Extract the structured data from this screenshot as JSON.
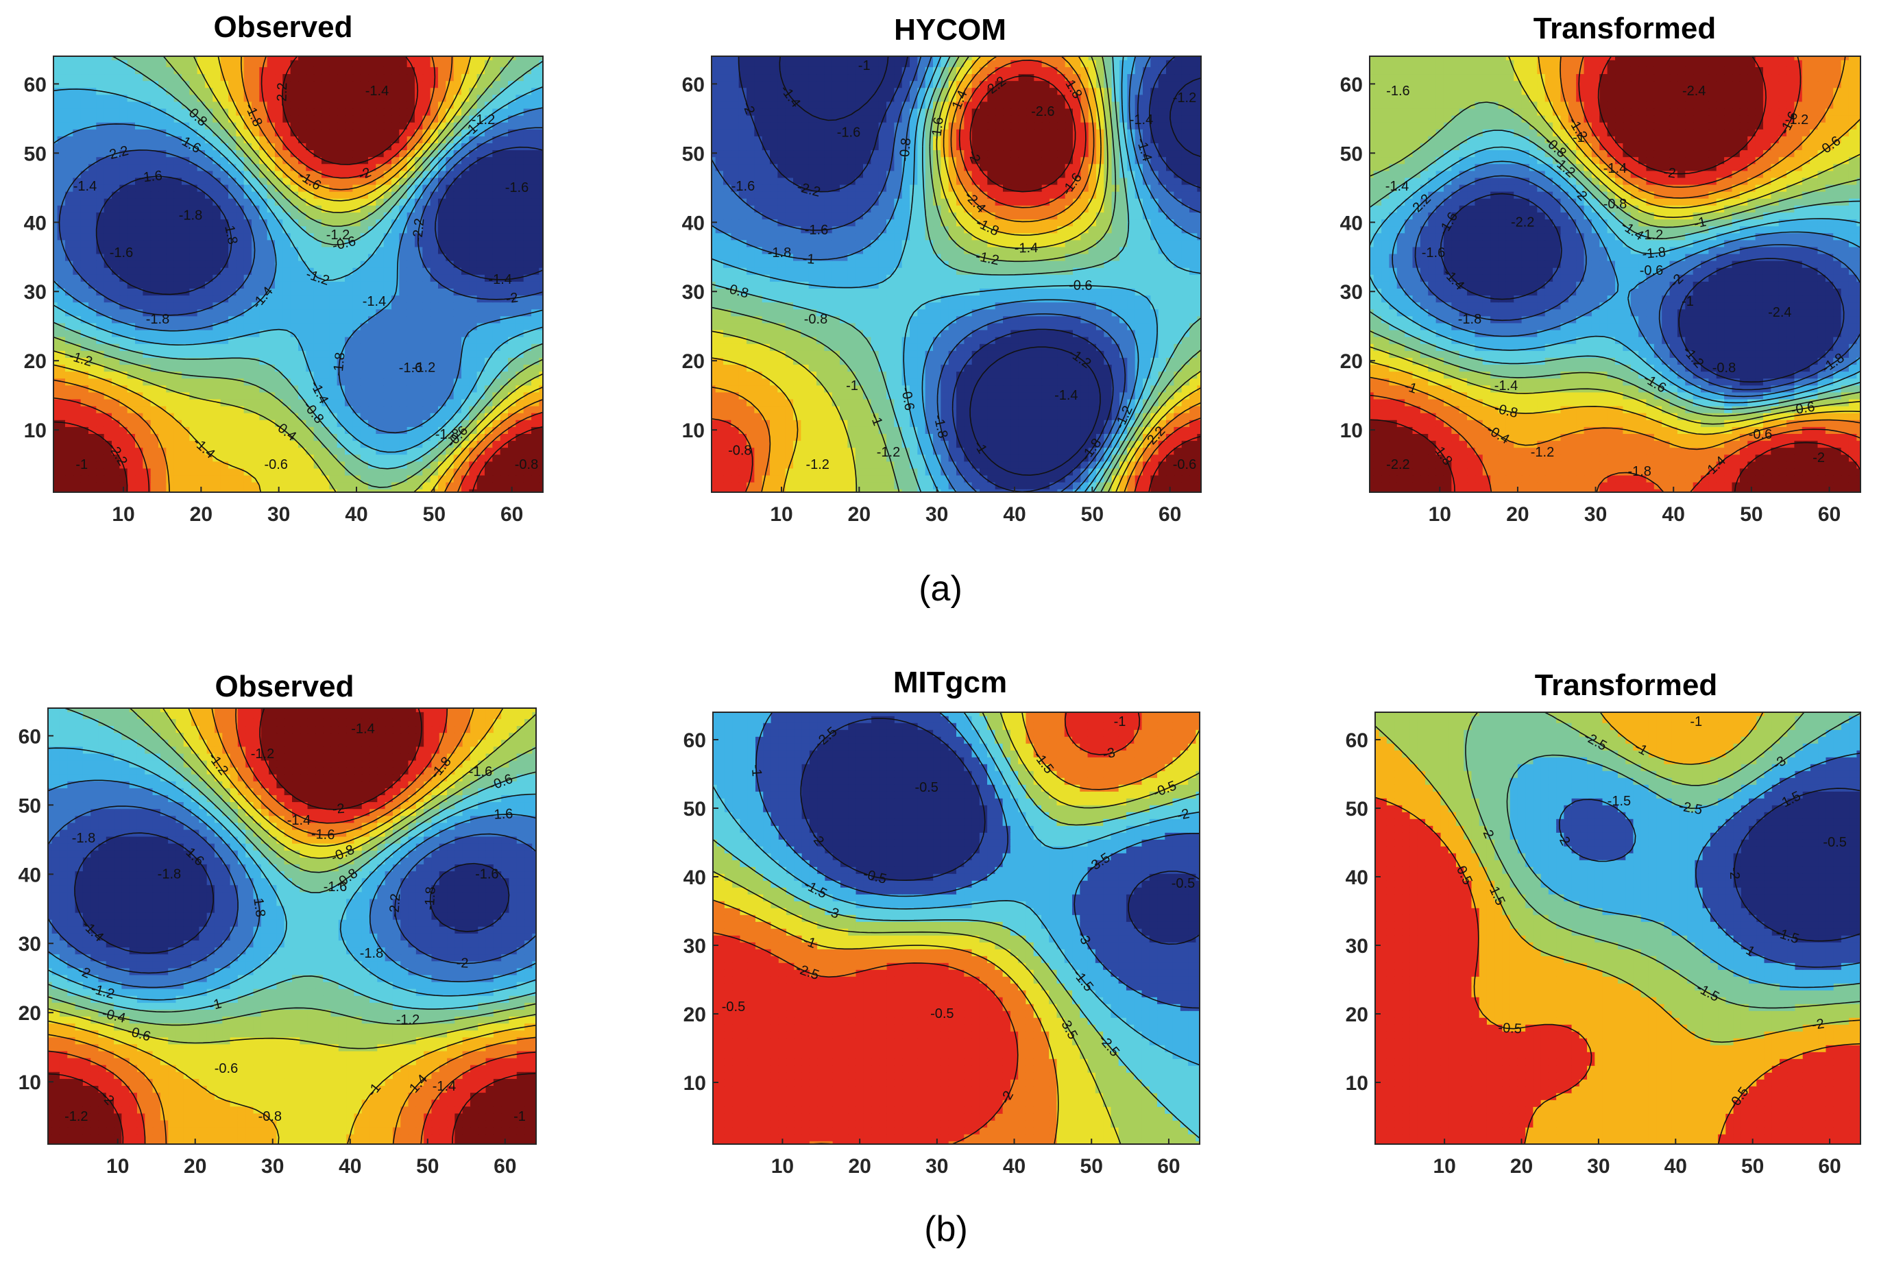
{
  "figure": {
    "captions": [
      "(a)",
      "(b)"
    ]
  },
  "colors": {
    "scale": [
      "#1f2a78",
      "#2d4aa6",
      "#3a78c8",
      "#3fb2e6",
      "#5ccfe0",
      "#7ec89a",
      "#a9cf5a",
      "#e9e02a",
      "#f7b318",
      "#f07a1e",
      "#e3281e",
      "#7a1010"
    ]
  },
  "chart_data": [
    {
      "type": "contour",
      "title": "Observed",
      "row": "(a)",
      "xticks": [
        "10",
        "20",
        "30",
        "40",
        "50",
        "60"
      ],
      "yticks": [
        "10",
        "20",
        "30",
        "40",
        "50",
        "60"
      ],
      "xlim": [
        1,
        64
      ],
      "ylim": [
        1,
        64
      ],
      "levels": [
        -2.4,
        -2.2,
        -2.0,
        -1.8,
        -1.6,
        -1.4,
        -1.2,
        -1.0,
        -0.8,
        -0.6,
        -0.4
      ],
      "features": [
        {
          "kind": "min",
          "x": 16,
          "y": 38,
          "value": -2.3
        },
        {
          "kind": "min",
          "x": 58,
          "y": 42,
          "value": -2.4
        },
        {
          "kind": "max",
          "x": 40,
          "y": 56,
          "value": -0.4
        },
        {
          "kind": "min",
          "x": 46,
          "y": 16,
          "value": -2.0
        },
        {
          "kind": "max",
          "x": 2,
          "y": 2,
          "value": -0.5
        },
        {
          "kind": "max",
          "x": 63,
          "y": 2,
          "value": -0.4
        },
        {
          "kind": "max",
          "x": 27,
          "y": 2,
          "value": -1.1
        }
      ],
      "contour_labels": [
        "-1.4",
        "-1.8",
        "-1.6",
        "-2",
        "-2.2",
        "-2.2",
        "-1.8",
        "-1.4",
        "-1.6",
        "-1.4",
        "-1.2",
        "-1",
        "-0.8",
        "-0.6",
        "-0.8",
        "-0.6",
        "-0.4",
        "-1.2",
        "-1.4",
        "-1.6",
        "-1.8",
        "-2",
        "-2.2",
        "-2.2",
        "-1.8",
        "-1.6",
        "-1.4",
        "-1.2",
        "-1",
        "-0.8",
        "-0.6",
        "-1.2",
        "-1.4",
        "-1.6",
        "-1.8",
        "-1.2",
        "-1.4",
        "-1.6",
        "-1.8"
      ]
    },
    {
      "type": "contour",
      "title": "HYCOM",
      "row": "(a)",
      "xticks": [
        "10",
        "20",
        "30",
        "40",
        "50",
        "60"
      ],
      "yticks": [
        "10",
        "20",
        "30",
        "40",
        "50",
        "60"
      ],
      "xlim": [
        1,
        64
      ],
      "ylim": [
        1,
        64
      ],
      "levels": [
        -2.6,
        -2.4,
        -2.2,
        -2.0,
        -1.8,
        -1.6,
        -1.4,
        -1.2,
        -1.0,
        -0.8,
        -0.6,
        -0.4
      ],
      "features": [
        {
          "kind": "max",
          "x": 41,
          "y": 53,
          "value": -0.4
        },
        {
          "kind": "min",
          "x": 16,
          "y": 50,
          "value": -2.2
        },
        {
          "kind": "min",
          "x": 44,
          "y": 12,
          "value": -2.6
        },
        {
          "kind": "min",
          "x": 64,
          "y": 55,
          "value": -2.4
        },
        {
          "kind": "min",
          "x": 18,
          "y": 64,
          "value": -2.4
        },
        {
          "kind": "max",
          "x": 2,
          "y": 4,
          "value": -0.7
        },
        {
          "kind": "max",
          "x": 63,
          "y": 2,
          "value": -0.5
        },
        {
          "kind": "max",
          "x": 12,
          "y": 2,
          "value": -1.3
        }
      ],
      "contour_labels": [
        "-1",
        "-1.2",
        "-1.4",
        "-1.8",
        "-2.2",
        "-2",
        "-1.8",
        "-1.6",
        "-1.4",
        "-1.2",
        "-1",
        "-0.8",
        "-0.6",
        "-0.6",
        "-0.8",
        "-1",
        "-1.2",
        "-1.4",
        "-1.6",
        "-1.8",
        "-2.2",
        "-2.4",
        "-1.4",
        "-1.6",
        "-1.8",
        "-2",
        "-2.2",
        "-2.6",
        "-1.6",
        "-1.4",
        "-1.2",
        "-1",
        "-0.8",
        "-0.6",
        "-1.2",
        "-1.4",
        "-1.6",
        "-1.8",
        "-0.8",
        "-1",
        "-1.2"
      ]
    },
    {
      "type": "contour",
      "title": "Transformed",
      "row": "(a)",
      "xticks": [
        "10",
        "20",
        "30",
        "40",
        "50",
        "60"
      ],
      "yticks": [
        "10",
        "20",
        "30",
        "40",
        "50",
        "60"
      ],
      "xlim": [
        1,
        64
      ],
      "ylim": [
        1,
        64
      ],
      "levels": [
        -2.4,
        -2.2,
        -2.0,
        -1.8,
        -1.6,
        -1.4,
        -1.2,
        -1.0,
        -0.8,
        -0.6,
        -0.4
      ],
      "features": [
        {
          "kind": "min",
          "x": 18,
          "y": 37,
          "value": -2.3
        },
        {
          "kind": "min",
          "x": 51,
          "y": 24,
          "value": -2.5
        },
        {
          "kind": "max",
          "x": 40,
          "y": 56,
          "value": -0.4
        },
        {
          "kind": "max",
          "x": 2,
          "y": 2,
          "value": -0.5
        },
        {
          "kind": "max",
          "x": 56,
          "y": 3,
          "value": -0.5
        },
        {
          "kind": "max",
          "x": 33,
          "y": 1,
          "value": -0.8
        },
        {
          "kind": "max",
          "x": 2,
          "y": 56,
          "value": -1.3
        }
      ],
      "contour_labels": [
        "-1.2",
        "-1.4",
        "-1.6",
        "-1.8",
        "-2",
        "-2.2",
        "-1.8",
        "-2",
        "-1.6",
        "-1.4",
        "-1.2",
        "-1",
        "-0.8",
        "-0.6",
        "-0.8",
        "-0.6",
        "-0.4",
        "-1",
        "-1.2",
        "-1.4",
        "-1.6",
        "-1.8",
        "-2",
        "-2.2",
        "-2.4",
        "-2.4",
        "-2.2",
        "-2",
        "-1.8",
        "-1.6",
        "-1.4",
        "-1.2",
        "-1",
        "-0.8",
        "-0.6",
        "-1.2",
        "-1.4",
        "-1.6",
        "-1.8",
        "-1.4",
        "-1.2",
        "-1",
        "-0.8",
        "-0.6"
      ]
    },
    {
      "type": "contour",
      "title": "Observed",
      "row": "(b)",
      "xticks": [
        "10",
        "20",
        "30",
        "40",
        "50",
        "60"
      ],
      "yticks": [
        "10",
        "20",
        "30",
        "40",
        "50",
        "60"
      ],
      "xlim": [
        1,
        64
      ],
      "ylim": [
        1,
        64
      ],
      "levels": [
        -2.4,
        -2.2,
        -2.0,
        -1.8,
        -1.6,
        -1.4,
        -1.2,
        -1.0,
        -0.8,
        -0.6,
        -0.4
      ],
      "features": [
        {
          "kind": "min",
          "x": 14,
          "y": 37,
          "value": -2.3
        },
        {
          "kind": "min",
          "x": 55,
          "y": 37,
          "value": -2.2
        },
        {
          "kind": "max",
          "x": 39,
          "y": 58,
          "value": -0.4
        },
        {
          "kind": "max",
          "x": 2,
          "y": 2,
          "value": -0.5
        },
        {
          "kind": "max",
          "x": 63,
          "y": 2,
          "value": -0.5
        },
        {
          "kind": "max",
          "x": 27,
          "y": 2,
          "value": -1.1
        }
      ],
      "contour_labels": [
        "-1.4",
        "-1.8",
        "-1.6",
        "-2",
        "-2.2",
        "-2",
        "-1.8",
        "-1.6",
        "-1.2",
        "-1",
        "-0.8",
        "-0.6",
        "-0.4",
        "-0.6",
        "-0.8",
        "-1",
        "-1.2",
        "-1.4",
        "-1.6",
        "-1.8",
        "-2",
        "-2",
        "-1.8",
        "-1.6",
        "-1.4",
        "-1.2",
        "-1",
        "-0.8",
        "-0.6",
        "-1.2",
        "-1.4",
        "-1.6",
        "-1.8",
        "-1.2",
        "-1.4",
        "-1.6",
        "-1.8"
      ]
    },
    {
      "type": "contour",
      "title": "MITgcm",
      "row": "(b)",
      "xticks": [
        "10",
        "20",
        "30",
        "40",
        "50",
        "60"
      ],
      "yticks": [
        "10",
        "20",
        "30",
        "40",
        "50",
        "60"
      ],
      "xlim": [
        1,
        64
      ],
      "ylim": [
        1,
        64
      ],
      "levels": [
        -3.5,
        -3.0,
        -2.5,
        -2.0,
        -1.5,
        -1.0,
        -0.5
      ],
      "features": [
        {
          "kind": "max",
          "x": 51,
          "y": 62,
          "value": -0.8
        },
        {
          "kind": "min",
          "x": 26,
          "y": 50,
          "value": -3.7
        },
        {
          "kind": "min",
          "x": 60,
          "y": 36,
          "value": -3.2
        },
        {
          "kind": "max",
          "x": 1,
          "y": 18,
          "value": -0.4
        },
        {
          "kind": "max",
          "x": 28,
          "y": 17,
          "value": -0.4
        }
      ],
      "contour_labels": [
        "-0.5",
        "-2",
        "-2.5",
        "-3",
        "-3.5",
        "-1",
        "-1.5",
        "-1.5",
        "-2",
        "-2.5",
        "-3",
        "-3.5",
        "-0.5",
        "-1",
        "-1.5",
        "-2",
        "-2.5",
        "-3",
        "-1",
        "-0.5",
        "-0.5",
        "-0.5",
        "-0.5"
      ]
    },
    {
      "type": "contour",
      "title": "Transformed",
      "row": "(b)",
      "xticks": [
        "10",
        "20",
        "30",
        "40",
        "50",
        "60"
      ],
      "yticks": [
        "10",
        "20",
        "30",
        "40",
        "50",
        "60"
      ],
      "xlim": [
        1,
        64
      ],
      "ylim": [
        1,
        64
      ],
      "levels": [
        -3.0,
        -2.5,
        -2.0,
        -1.5,
        -1.0,
        -0.5
      ],
      "features": [
        {
          "kind": "min",
          "x": 58,
          "y": 42,
          "value": -3.1
        },
        {
          "kind": "min",
          "x": 30,
          "y": 48,
          "value": -2.4
        },
        {
          "kind": "max",
          "x": 40,
          "y": 64,
          "value": -0.8
        },
        {
          "kind": "max",
          "x": 2,
          "y": 36,
          "value": -0.3
        },
        {
          "kind": "max",
          "x": 3,
          "y": 5,
          "value": -0.3
        },
        {
          "kind": "max",
          "x": 63,
          "y": 2,
          "value": -0.3
        },
        {
          "kind": "max",
          "x": 25,
          "y": 14,
          "value": -0.8
        }
      ],
      "contour_labels": [
        "-1.5",
        "-2",
        "-1.5",
        "-1",
        "-2",
        "-2.5",
        "-3",
        "-1.5",
        "-2",
        "-2.5",
        "-2",
        "-1.5",
        "-1",
        "-0.5",
        "-0.5",
        "-0.5",
        "-0.5",
        "-1.5",
        "-1"
      ]
    }
  ]
}
